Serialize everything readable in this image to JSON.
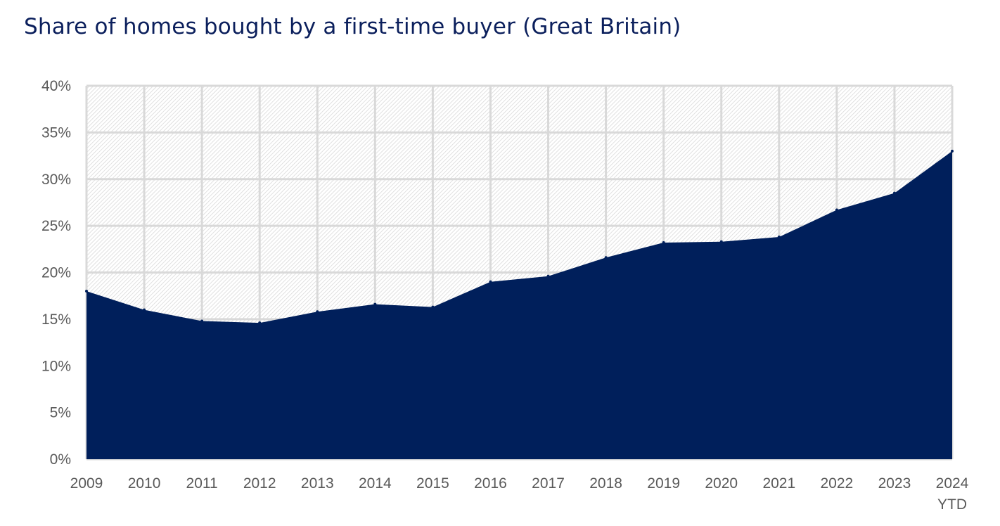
{
  "title": "Share of homes bought by a first-time buyer (Great Britain)",
  "colors": {
    "area": "#001f5b",
    "title": "#0b1f5c",
    "grid": "#d9d9d9",
    "hatch": "#d6d6d6",
    "tick_text": "#595959"
  },
  "chart_data": {
    "type": "area",
    "title": "Share of homes bought by a first-time buyer (Great Britain)",
    "xlabel": "",
    "ylabel": "",
    "categories": [
      "2009",
      "2010",
      "2011",
      "2012",
      "2013",
      "2014",
      "2015",
      "2016",
      "2017",
      "2018",
      "2019",
      "2020",
      "2021",
      "2022",
      "2023",
      "2024\nYTD"
    ],
    "x_tick_labels": [
      {
        "line1": "2009",
        "line2": ""
      },
      {
        "line1": "2010",
        "line2": ""
      },
      {
        "line1": "2011",
        "line2": ""
      },
      {
        "line1": "2012",
        "line2": ""
      },
      {
        "line1": "2013",
        "line2": ""
      },
      {
        "line1": "2014",
        "line2": ""
      },
      {
        "line1": "2015",
        "line2": ""
      },
      {
        "line1": "2016",
        "line2": ""
      },
      {
        "line1": "2017",
        "line2": ""
      },
      {
        "line1": "2018",
        "line2": ""
      },
      {
        "line1": "2019",
        "line2": ""
      },
      {
        "line1": "2020",
        "line2": ""
      },
      {
        "line1": "2021",
        "line2": ""
      },
      {
        "line1": "2022",
        "line2": ""
      },
      {
        "line1": "2023",
        "line2": ""
      },
      {
        "line1": "2024",
        "line2": "YTD"
      }
    ],
    "values": [
      18.0,
      16.0,
      14.8,
      14.6,
      15.8,
      16.6,
      16.3,
      19.0,
      19.6,
      21.6,
      23.2,
      23.3,
      23.8,
      26.7,
      28.5,
      33.0
    ],
    "ylim": [
      0,
      40
    ],
    "y_ticks": [
      0,
      5,
      10,
      15,
      20,
      25,
      30,
      35,
      40
    ],
    "y_tick_labels": [
      "0%",
      "5%",
      "10%",
      "15%",
      "20%",
      "25%",
      "30%",
      "35%",
      "40%"
    ],
    "grid": true,
    "background": "hatched",
    "legend": "none"
  }
}
